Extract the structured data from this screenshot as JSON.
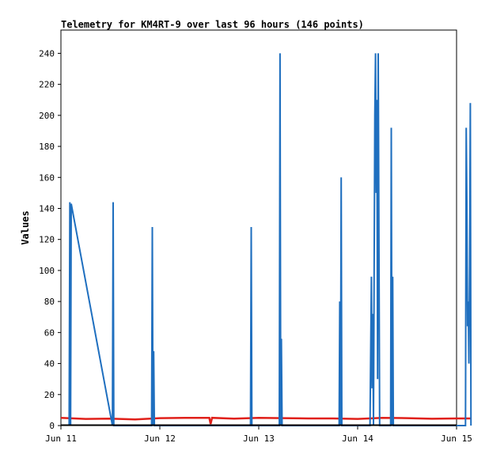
{
  "chart_data": {
    "type": "line",
    "title": "Telemetry for KM4RT-9 over last 96 hours (146 points)",
    "ylabel": "Values",
    "xlabel": "",
    "ylim": [
      0,
      255
    ],
    "y_ticks": [
      0,
      20,
      40,
      60,
      80,
      100,
      120,
      140,
      160,
      180,
      200,
      220,
      240
    ],
    "x_range": [
      "2023-06-11T00:00",
      "2023-06-15T00:00"
    ],
    "x_ticks": [
      {
        "label": "Jun 11",
        "x": "2023-06-11T00:00"
      },
      {
        "label": "Jun 12",
        "x": "2023-06-12T00:00"
      },
      {
        "label": "Jun 13",
        "x": "2023-06-13T00:00"
      },
      {
        "label": "Jun 14",
        "x": "2023-06-14T00:00"
      },
      {
        "label": "Jun 15",
        "x": "2023-06-15T00:00"
      }
    ],
    "grid": false,
    "series": [
      {
        "color": "#1f6fbf",
        "points": [
          [
            "2023-06-11T02:00",
            0
          ],
          [
            "2023-06-11T02:10",
            144
          ],
          [
            "2023-06-11T02:20",
            0
          ],
          [
            "2023-06-11T02:30",
            143
          ],
          [
            "2023-06-11T12:30",
            0
          ],
          [
            "2023-06-11T12:40",
            144
          ],
          [
            "2023-06-11T12:50",
            0
          ],
          [
            "2023-06-11T22:00",
            0
          ],
          [
            "2023-06-11T22:10",
            128
          ],
          [
            "2023-06-11T22:20",
            0
          ],
          [
            "2023-06-11T22:30",
            48
          ],
          [
            "2023-06-11T22:40",
            0
          ],
          [
            "2023-06-12T22:00",
            0
          ],
          [
            "2023-06-12T22:10",
            128
          ],
          [
            "2023-06-12T22:20",
            0
          ],
          [
            "2023-06-13T05:00",
            0
          ],
          [
            "2023-06-13T05:10",
            240
          ],
          [
            "2023-06-13T05:20",
            0
          ],
          [
            "2023-06-13T05:30",
            56
          ],
          [
            "2023-06-13T05:40",
            0
          ],
          [
            "2023-06-13T19:30",
            0
          ],
          [
            "2023-06-13T19:40",
            80
          ],
          [
            "2023-06-13T19:50",
            0
          ],
          [
            "2023-06-13T20:00",
            160
          ],
          [
            "2023-06-13T20:10",
            0
          ],
          [
            "2023-06-14T03:00",
            0
          ],
          [
            "2023-06-14T03:10",
            48
          ],
          [
            "2023-06-14T03:20",
            96
          ],
          [
            "2023-06-14T03:30",
            24
          ],
          [
            "2023-06-14T03:40",
            72
          ],
          [
            "2023-06-14T03:50",
            0
          ],
          [
            "2023-06-14T04:10",
            200
          ],
          [
            "2023-06-14T04:20",
            240
          ],
          [
            "2023-06-14T04:30",
            150
          ],
          [
            "2023-06-14T04:40",
            210
          ],
          [
            "2023-06-14T04:50",
            30
          ],
          [
            "2023-06-14T05:00",
            240
          ],
          [
            "2023-06-14T05:10",
            120
          ],
          [
            "2023-06-14T05:20",
            0
          ],
          [
            "2023-06-14T08:00",
            0
          ],
          [
            "2023-06-14T08:10",
            192
          ],
          [
            "2023-06-14T08:20",
            0
          ],
          [
            "2023-06-14T08:30",
            96
          ],
          [
            "2023-06-14T08:40",
            0
          ],
          [
            "2023-06-15T02:10",
            0
          ],
          [
            "2023-06-15T02:20",
            192
          ],
          [
            "2023-06-15T02:30",
            144
          ],
          [
            "2023-06-15T02:40",
            64
          ],
          [
            "2023-06-15T02:50",
            80
          ],
          [
            "2023-06-15T03:00",
            40
          ],
          [
            "2023-06-15T03:10",
            104
          ],
          [
            "2023-06-15T03:20",
            208
          ],
          [
            "2023-06-15T03:30",
            0
          ]
        ]
      },
      {
        "color": "#e0201a",
        "points": [
          [
            "2023-06-11T00:00",
            5
          ],
          [
            "2023-06-11T06:00",
            4.3
          ],
          [
            "2023-06-11T12:00",
            4.5
          ],
          [
            "2023-06-11T18:00",
            4
          ],
          [
            "2023-06-12T00:00",
            4.8
          ],
          [
            "2023-06-12T06:00",
            5
          ],
          [
            "2023-06-12T12:00",
            5
          ],
          [
            "2023-06-12T12:20",
            1
          ],
          [
            "2023-06-12T12:40",
            5
          ],
          [
            "2023-06-12T18:00",
            4.5
          ],
          [
            "2023-06-13T00:00",
            5
          ],
          [
            "2023-06-13T06:00",
            4.8
          ],
          [
            "2023-06-13T12:00",
            4.6
          ],
          [
            "2023-06-13T18:00",
            4.6
          ],
          [
            "2023-06-14T00:00",
            4.3
          ],
          [
            "2023-06-14T06:00",
            5
          ],
          [
            "2023-06-14T12:00",
            4.8
          ],
          [
            "2023-06-14T18:00",
            4.4
          ],
          [
            "2023-06-15T00:00",
            4.6
          ],
          [
            "2023-06-15T03:30",
            4.6
          ]
        ]
      }
    ]
  }
}
